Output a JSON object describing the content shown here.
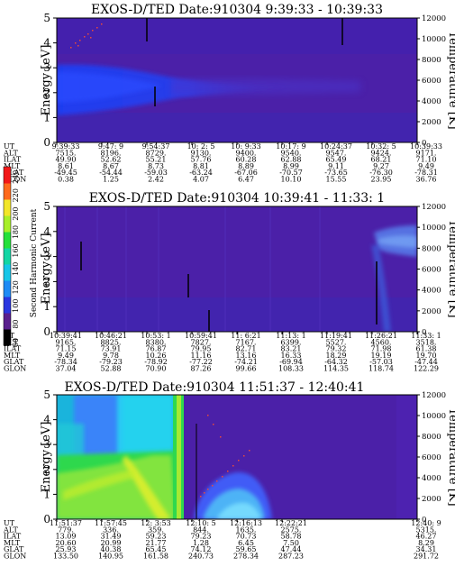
{
  "colors": {
    "background": "#4b20a8",
    "background_dark": "#3a1890",
    "band_blue": "#1f3cf0",
    "band_light": "#3f63ff",
    "cyan": "#25d8f2",
    "aqua": "#1ab4dc",
    "sky": "#50bdf6",
    "green": "#2fd84e",
    "lime": "#c6ee2c",
    "yellow": "#e8f02a",
    "speck": "#e84a3c"
  },
  "colorbar": {
    "label": "Second Harmonic Current",
    "ticks": [
      "60",
      "80",
      "100",
      "120",
      "140",
      "160",
      "180",
      "200",
      "220",
      "240"
    ],
    "colors": [
      "#000000",
      "#5a1f8e",
      "#2a36e0",
      "#1f8bf5",
      "#17c6e8",
      "#14d6a4",
      "#25e03a",
      "#a8ef2a",
      "#f2e62a",
      "#ff6a1c",
      "#f21818"
    ]
  },
  "panels": [
    {
      "title": "EXOS-D/TED   Date:910304  9:39:33 - 10:39:33",
      "ylabel": "Energy [eV]",
      "y2label": "Temperature [K]",
      "yticks": [
        "0",
        "1",
        "2",
        "3",
        "4",
        "5"
      ],
      "y2ticks": [
        "0",
        "2000",
        "4000",
        "6000",
        "8000",
        "10000",
        "12000"
      ],
      "row_labels": [
        "UT",
        "ALT",
        "ILAT",
        "MLT",
        "GLAT",
        "GLON"
      ],
      "columns": [
        [
          "9:39:33",
          "7515.",
          "49.90",
          "8.61",
          "-49.45",
          "0.38"
        ],
        [
          "9:47: 9",
          "8196.",
          "52.62",
          "8.67",
          "-54.44",
          "1.25"
        ],
        [
          "9:54:37",
          "8729.",
          "55.21",
          "8.73",
          "-59.03",
          "2.42"
        ],
        [
          "10: 2: 5",
          "9130.",
          "57.76",
          "8.81",
          "-63.24",
          "4.07"
        ],
        [
          "10: 9:33",
          "9400.",
          "60.28",
          "8.89",
          "-67.06",
          "6.47"
        ],
        [
          "10:17: 9",
          "9540.",
          "62.88",
          "8.99",
          "-70.57",
          "10.10"
        ],
        [
          "10:24:37",
          "9547.",
          "65.49",
          "9.11",
          "-73.65",
          "15.55"
        ],
        [
          "10:32: 5",
          "9424.",
          "68.21",
          "9.27",
          "-76.30",
          "23.95"
        ],
        [
          "10:39:33",
          "9171.",
          "71.10",
          "9.49",
          "-78.31",
          "36.76"
        ]
      ]
    },
    {
      "title": "EXOS-D/TED   Date:910304  10:39:41 - 11:33: 1",
      "ylabel": "Energy [eV]",
      "y2label": "Temperature [K]",
      "yticks": [
        "0",
        "1",
        "2",
        "3",
        "4",
        "5"
      ],
      "y2ticks": [
        "0",
        "2000",
        "4000",
        "6000",
        "8000",
        "10000",
        "12000"
      ],
      "row_labels": [
        "UT",
        "ALT",
        "ILAT",
        "MLT",
        "GLAT",
        "GLON"
      ],
      "columns": [
        [
          "10:39:41",
          "9165.",
          "71.15",
          "9.49",
          "-78.34",
          "37.04"
        ],
        [
          "10:46:21",
          "8825.",
          "73.91",
          "9.78",
          "-79.23",
          "52.88"
        ],
        [
          "10:53: 1",
          "8380.",
          "76.87",
          "10.26",
          "-78.92",
          "70.90"
        ],
        [
          "10:59:41",
          "7827.",
          "79.95",
          "11.16",
          "-77.22",
          "87.26"
        ],
        [
          "11: 6:21",
          "7167.",
          "82.71",
          "13.16",
          "-74.21",
          "99.66"
        ],
        [
          "11:13: 1",
          "6399.",
          "83.21",
          "16.33",
          "-69.94",
          "108.33"
        ],
        [
          "11:19:41",
          "5527.",
          "79.32",
          "18.29",
          "-64.32",
          "114.35"
        ],
        [
          "11:26:21",
          "4560.",
          "71.98",
          "19.19",
          "-57.03",
          "118.74"
        ],
        [
          "11:33: 1",
          "3518.",
          "61.38",
          "19.70",
          "-47.44",
          "122.29"
        ]
      ]
    },
    {
      "title": "EXOS-D/TED   Date:910304  11:51:37 - 12:40:41",
      "ylabel": "Energy [eV]",
      "y2label": "Temperature [K]",
      "yticks": [
        "0",
        "1",
        "2",
        "3",
        "4",
        "5"
      ],
      "y2ticks": [
        "0",
        "2000",
        "4000",
        "6000",
        "8000",
        "10000",
        "12000"
      ],
      "row_labels": [
        "UT",
        "ALT",
        "ILAT",
        "MLT",
        "GLAT",
        "GLON"
      ],
      "columns": [
        [
          "11:51:37",
          "779.",
          "13.09",
          "20.60",
          "25.93",
          "133.50"
        ],
        [
          "11:57:45",
          "336.",
          "31.49",
          "20.99",
          "40.38",
          "140.95"
        ],
        [
          "12: 3:53",
          "359.",
          "59.23",
          "21.77",
          "65.45",
          "161.58"
        ],
        [
          "12:10: 5",
          "844.",
          "79.23",
          "1.28",
          "74.12",
          "240.73"
        ],
        [
          "12:16:13",
          "1635.",
          "70.73",
          "6.45",
          "59.65",
          "278.34"
        ],
        [
          "12:22:21",
          "2575.",
          "58.78",
          "7.50",
          "47.44",
          "287.23"
        ],
        [
          "12:40: 9",
          "5315.",
          "46.27",
          "8.29",
          "34.31",
          "291.72"
        ]
      ]
    }
  ],
  "chart_data": [
    {
      "type": "heatmap",
      "title": "EXOS-D/TED   Date:910304  9:39:33 - 10:39:33",
      "ylabel": "Energy [eV]",
      "y2label": "Temperature [K]",
      "ylim": [
        0,
        5
      ],
      "y2lim": [
        0,
        12000
      ],
      "x_ticks": [
        "9:39:33",
        "9:47: 9",
        "9:54:37",
        "10: 2: 5",
        "10: 9:33",
        "10:17: 9",
        "10:24:37",
        "10:32: 5",
        "10:39:33"
      ]
    },
    {
      "type": "heatmap",
      "title": "EXOS-D/TED   Date:910304  10:39:41 - 11:33: 1",
      "ylabel": "Energy [eV]",
      "y2label": "Temperature [K]",
      "ylim": [
        0,
        5
      ],
      "y2lim": [
        0,
        12000
      ],
      "x_ticks": [
        "10:39:41",
        "10:46:21",
        "10:53: 1",
        "10:59:41",
        "11: 6:21",
        "11:13: 1",
        "11:19:41",
        "11:26:21",
        "11:33: 1"
      ]
    },
    {
      "type": "heatmap",
      "title": "EXOS-D/TED   Date:910304  11:51:37 - 12:40:41",
      "ylabel": "Energy [eV]",
      "y2label": "Temperature [K]",
      "ylim": [
        0,
        5
      ],
      "y2lim": [
        0,
        12000
      ],
      "x_ticks": [
        "11:51:37",
        "11:57:45",
        "12: 3:53",
        "12:10: 5",
        "12:16:13",
        "12:22:21",
        "12:40: 9"
      ]
    }
  ]
}
